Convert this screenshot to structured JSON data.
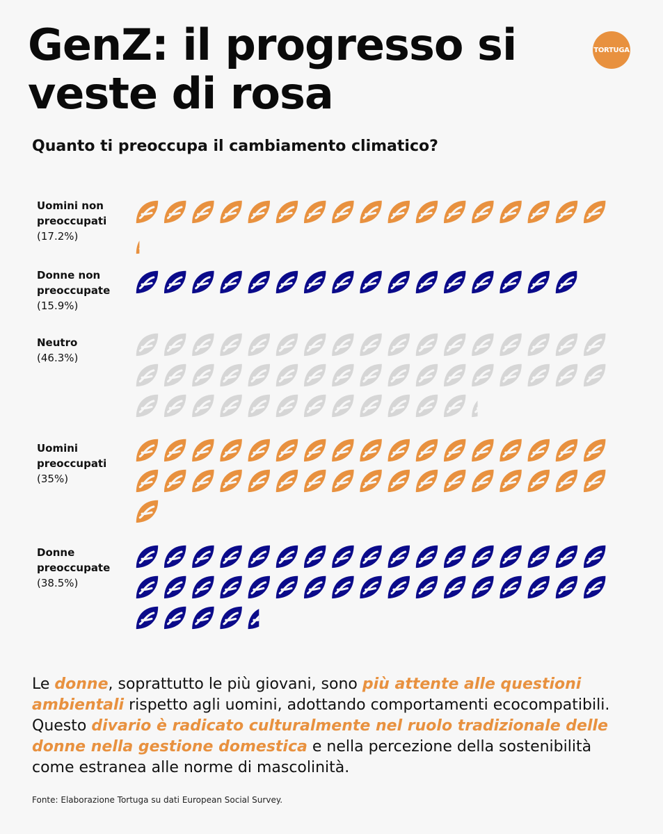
{
  "title": "GenZ: il progresso si veste di rosa",
  "logo_text": "TORTUGA",
  "chart_data": {
    "type": "pictogram",
    "title": "Quanto ti preoccupa il cambiamento climatico?",
    "unit_per_icon": 1,
    "icons_per_row": 17,
    "icon": "leaf-icon",
    "categories": [
      {
        "name": "Uomini non preoccupati",
        "pct_label": "(17.2%)",
        "value": 17.2,
        "color": "#e8913f"
      },
      {
        "name": "Donne non preoccupate",
        "pct_label": "(15.9%)",
        "value": 15.9,
        "color": "#0b0b8a"
      },
      {
        "name": "Neutro",
        "pct_label": "(46.3%)",
        "value": 46.3,
        "color": "#d6d6d6"
      },
      {
        "name": "Uomini preoccupati",
        "pct_label": "(35%)",
        "value": 35,
        "color": "#e8913f"
      },
      {
        "name": "Donne preoccupate",
        "pct_label": "(38.5%)",
        "value": 38.5,
        "color": "#0b0b8a"
      }
    ]
  },
  "description": {
    "p1": "Le ",
    "h1": "donne",
    "p2": ", soprattutto le più giovani, sono ",
    "h2": "più attente alle questioni ambientali",
    "p3": " rispetto agli uomini, adottando comportamenti ecocompatibili. Questo ",
    "h3": "divario è radicato culturalmente nel ruolo tradizionale delle donne nella gestione domestica",
    "p4": " e nella percezione della sostenibilità come estranea alle norme di mascolinità."
  },
  "source": "Fonte: Elaborazione Tortuga su dati European Social Survey."
}
